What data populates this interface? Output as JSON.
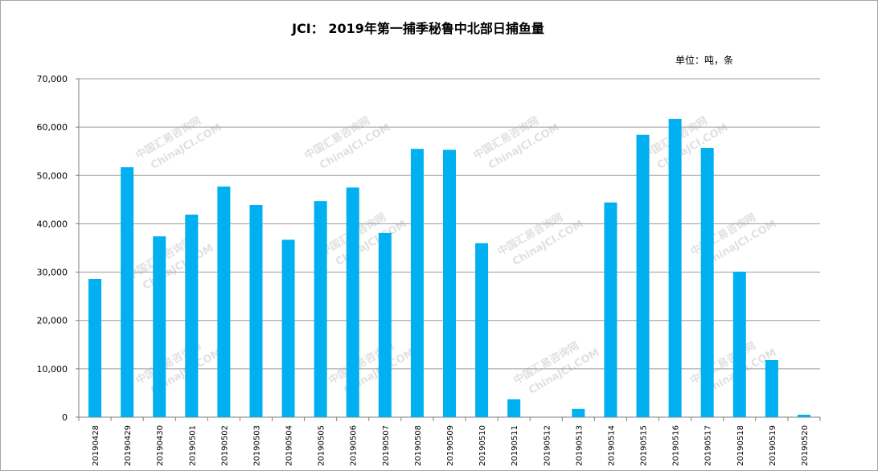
{
  "chart_data": {
    "type": "bar",
    "title": "JCI： 2019年第一捕季秘鲁中北部日捕鱼量",
    "unit_label": "单位：吨，条",
    "xlabel": "",
    "ylabel": "",
    "ylim": [
      0,
      70000
    ],
    "yticks": [
      0,
      10000,
      20000,
      30000,
      40000,
      50000,
      60000,
      70000
    ],
    "ytick_labels": [
      "0",
      "10,000",
      "20,000",
      "30,000",
      "40,000",
      "50,000",
      "60,000",
      "70,000"
    ],
    "grid": true,
    "legend": "none",
    "bar_color": "#00b0f0",
    "categories": [
      "20190428",
      "20190429",
      "20190430",
      "20190501",
      "20190502",
      "20190503",
      "20190504",
      "20190505",
      "20190506",
      "20190507",
      "20190508",
      "20190509",
      "20190510",
      "20190511",
      "20190512",
      "20190513",
      "20190514",
      "20190515",
      "20190516",
      "20190517",
      "20190518",
      "20190519",
      "20190520"
    ],
    "values": [
      28600,
      51700,
      37400,
      41900,
      47700,
      43900,
      36700,
      44700,
      47500,
      38100,
      55500,
      55300,
      36000,
      3700,
      0,
      1700,
      44400,
      58400,
      61700,
      55700,
      30100,
      11800,
      500
    ]
  },
  "watermark": {
    "line1": "中国汇易咨询网",
    "line2": "ChinaJCI.COM"
  }
}
